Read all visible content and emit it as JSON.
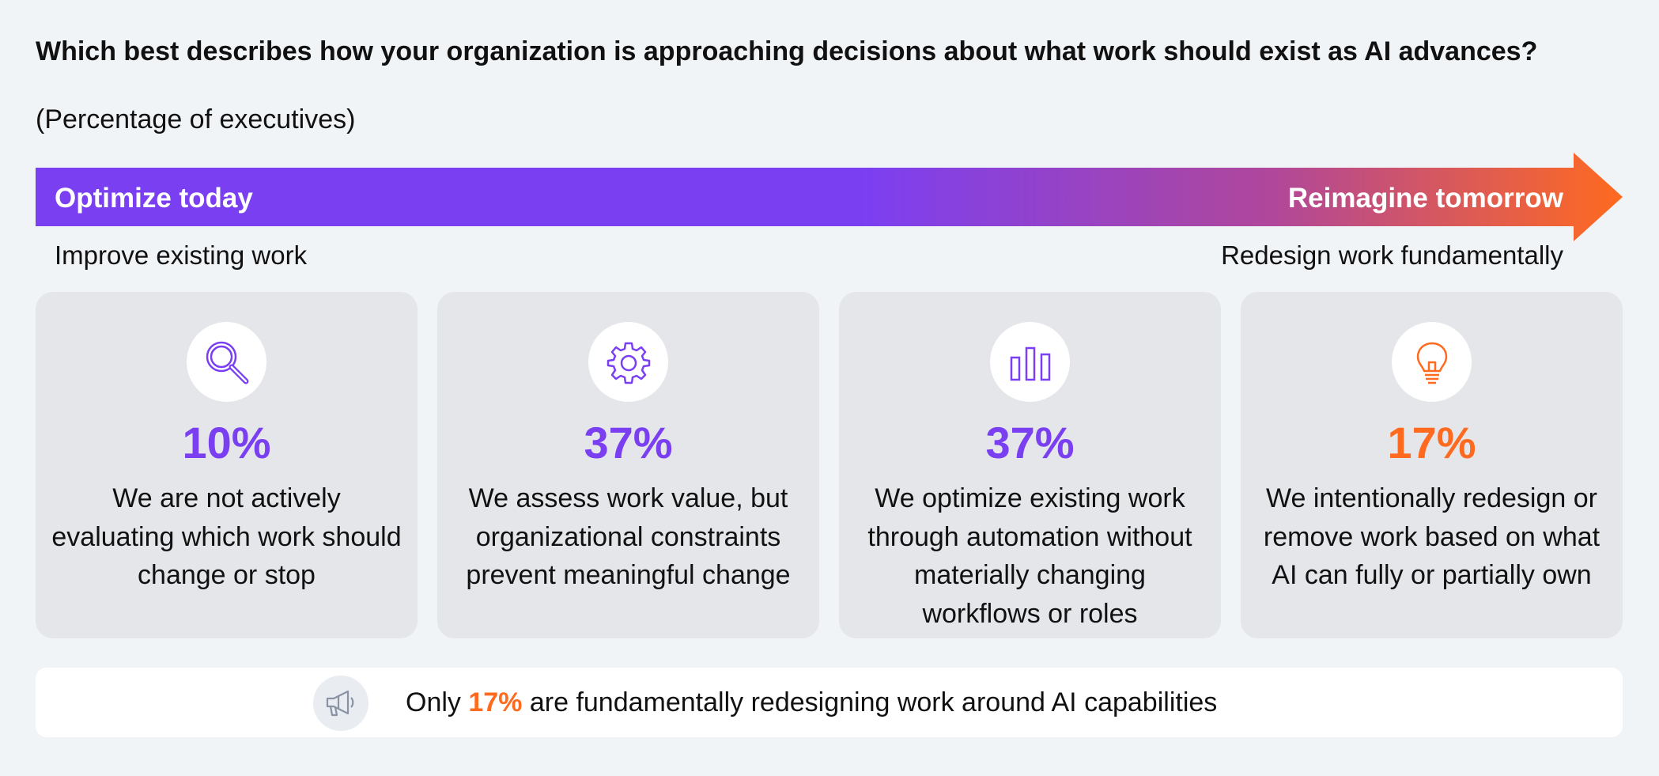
{
  "title": "Which best describes how your organization is approaching decisions about what work should exist as AI advances?",
  "subtitle": "(Percentage of executives)",
  "arrow": {
    "left_label": "Optimize today",
    "right_label": "Reimagine tomorrow",
    "left_sub": "Improve existing work",
    "right_sub": "Redesign work fundamentally"
  },
  "colors": {
    "purple": "#7b3ff2",
    "orange": "#ff6a1f",
    "card_bg": "#e4e6ea",
    "page_bg": "#f1f4f7"
  },
  "chart_data": {
    "type": "table",
    "categories": [
      "We are not actively evaluating which work should change or stop",
      "We assess work value, but organizational constraints prevent meaningful change",
      "We optimize existing work through automation without materially changing workflows or roles",
      "We intentionally redesign or remove work based on what AI can fully or partially own"
    ],
    "values": [
      10,
      37,
      37,
      17
    ],
    "unit": "%"
  },
  "cards": [
    {
      "icon": "magnifier-icon",
      "percent": "10%",
      "description": "We are not actively evaluating which work should change or stop",
      "color": "#7b3ff2"
    },
    {
      "icon": "gear-icon",
      "percent": "37%",
      "description": "We assess work value, but organizational constraints prevent meaningful change",
      "color": "#7b3ff2"
    },
    {
      "icon": "bar-chart-icon",
      "percent": "37%",
      "description": "We optimize existing work through automation without materially changing workflows or roles",
      "color": "#7b3ff2"
    },
    {
      "icon": "lightbulb-icon",
      "percent": "17%",
      "description": "We intentionally redesign or remove work based on what AI can fully or partially own",
      "color": "#ff6a1f"
    }
  ],
  "callout": {
    "icon": "megaphone-icon",
    "prefix": "Only ",
    "highlight": "17%",
    "suffix": " are fundamentally redesigning work around AI capabilities"
  }
}
